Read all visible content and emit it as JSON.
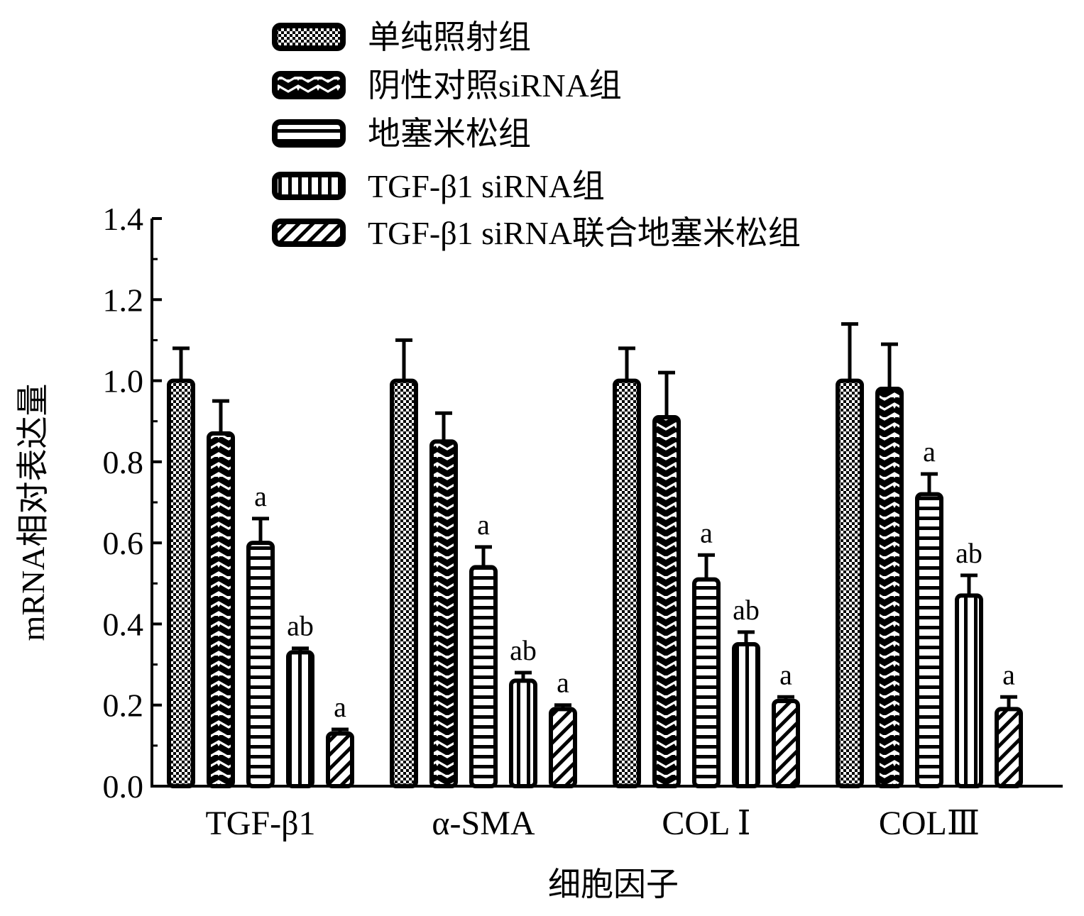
{
  "chart_data": {
    "type": "bar",
    "title": "",
    "xlabel": "细胞因子",
    "ylabel": "mRNA相对表达量",
    "ylim": [
      0,
      1.4
    ],
    "yticks": [
      "0.0",
      "0.2",
      "0.4",
      "0.6",
      "0.8",
      "1.0",
      "1.2",
      "1.4"
    ],
    "grid": false,
    "legend_position": "top",
    "categories": [
      "TGF-β1",
      "α-SMA",
      "COL Ⅰ",
      "COLⅢ"
    ],
    "series": [
      {
        "name": "单纯照射组",
        "pattern": "checker",
        "values": [
          1.0,
          1.0,
          1.0,
          1.0
        ],
        "errors": [
          0.08,
          0.1,
          0.08,
          0.14
        ],
        "labels": [
          "",
          "",
          "",
          ""
        ]
      },
      {
        "name": "阴性对照siRNA组",
        "pattern": "wave",
        "values": [
          0.87,
          0.85,
          0.91,
          0.98
        ],
        "errors": [
          0.08,
          0.07,
          0.11,
          0.11
        ],
        "labels": [
          "",
          "",
          "",
          ""
        ]
      },
      {
        "name": "地塞米松组",
        "pattern": "hlines",
        "values": [
          0.6,
          0.54,
          0.51,
          0.72
        ],
        "errors": [
          0.06,
          0.05,
          0.06,
          0.05
        ],
        "labels": [
          "a",
          "a",
          "a",
          "a"
        ]
      },
      {
        "name": "TGF-β1 siRNA组",
        "pattern": "vlines",
        "values": [
          0.33,
          0.26,
          0.35,
          0.47
        ],
        "errors": [
          0.01,
          0.02,
          0.03,
          0.05
        ],
        "labels": [
          "ab",
          "ab",
          "ab",
          "ab"
        ]
      },
      {
        "name": "TGF-β1 siRNA联合地塞米松组",
        "pattern": "diagonal",
        "values": [
          0.13,
          0.19,
          0.21,
          0.19
        ],
        "errors": [
          0.01,
          0.01,
          0.01,
          0.03
        ],
        "labels": [
          "a",
          "a",
          "a",
          "a"
        ]
      }
    ]
  },
  "colors": {
    "ink": "#000000",
    "background": "#ffffff"
  }
}
